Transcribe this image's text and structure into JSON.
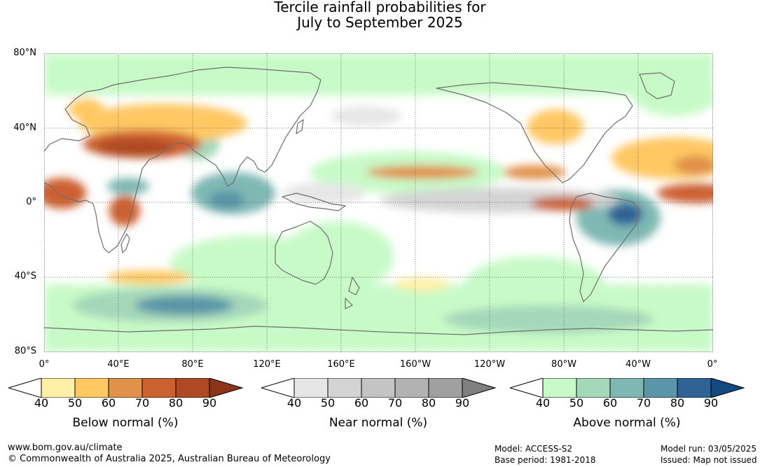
{
  "title": {
    "line1": "Tercile rainfall probabilities for",
    "line2": "July to September 2025"
  },
  "axes": {
    "lat_labels": [
      "80°N",
      "40°N",
      "0°",
      "40°S",
      "80°S"
    ],
    "lon_labels": [
      "0°",
      "40°E",
      "80°E",
      "120°E",
      "160°E",
      "160°W",
      "120°W",
      "80°W",
      "40°W",
      "0°"
    ]
  },
  "legends": [
    {
      "title": "Below normal (%)",
      "ticks": [
        "40",
        "50",
        "60",
        "70",
        "80",
        "90"
      ],
      "colors": [
        "#fff0a8",
        "#ffc863",
        "#e0914a",
        "#cc6130",
        "#ad4a24",
        "#8c3418"
      ]
    },
    {
      "title": "Near normal (%)",
      "ticks": [
        "40",
        "50",
        "60",
        "70",
        "80",
        "90"
      ],
      "colors": [
        "#e6e6e6",
        "#d4d4d4",
        "#c3c3c3",
        "#b2b2b2",
        "#a0a0a0",
        "#808080"
      ]
    },
    {
      "title": "Above normal (%)",
      "ticks": [
        "40",
        "50",
        "60",
        "70",
        "80",
        "90"
      ],
      "colors": [
        "#c8fac8",
        "#a5d7b9",
        "#7fb8b2",
        "#5a95a8",
        "#2f6396",
        "#124a80"
      ]
    }
  ],
  "footer": {
    "website": "www.bom.gov.au/climate",
    "copyright": "© Commonwealth of Australia 2025, Australian Bureau of Meteorology",
    "model": "Model: ACCESS-S2",
    "base_period": "Base period: 1981-2018",
    "model_run": "Model run: 03/05/2025",
    "issued": "Issued: Map not issued"
  },
  "map_colors": {
    "ocean": "#ffffff",
    "coastline": "#6e6e6e",
    "grid": "#555555"
  }
}
